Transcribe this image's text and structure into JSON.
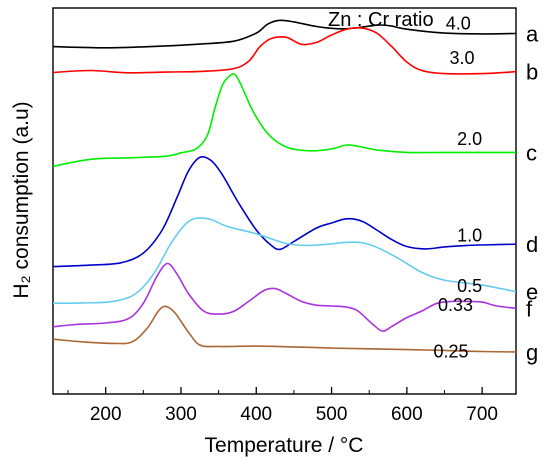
{
  "chart_data": {
    "type": "line",
    "title": "",
    "xlabel": "Temperature / °C",
    "ylabel": "H₂ consumption (a.u)",
    "xlim": [
      130,
      745
    ],
    "ylim": [
      0,
      100
    ],
    "x_ticks": [
      200,
      300,
      400,
      500,
      600,
      700
    ],
    "y_ticks_shown": false,
    "grid": false,
    "legend": {
      "title": "Zn : Cr ratio",
      "placement": "top-right"
    },
    "series": [
      {
        "letter": "a",
        "ratio": "4.0",
        "color": "#000000",
        "points": [
          [
            130,
            90.0
          ],
          [
            200,
            89.7
          ],
          [
            260,
            90.0
          ],
          [
            320,
            90.6
          ],
          [
            370,
            91.4
          ],
          [
            400,
            93.5
          ],
          [
            415,
            95.8
          ],
          [
            430,
            96.8
          ],
          [
            450,
            96.4
          ],
          [
            480,
            95.2
          ],
          [
            510,
            94.6
          ],
          [
            530,
            94.8
          ],
          [
            550,
            95.3
          ],
          [
            565,
            95.6
          ],
          [
            580,
            95.3
          ],
          [
            600,
            94.5
          ],
          [
            650,
            93.5
          ],
          [
            700,
            93.3
          ],
          [
            745,
            93.4
          ]
        ]
      },
      {
        "letter": "b",
        "ratio": "3.0",
        "color": "#ff0000",
        "points": [
          [
            130,
            83.3
          ],
          [
            180,
            83.8
          ],
          [
            230,
            83.2
          ],
          [
            280,
            83.4
          ],
          [
            330,
            83.6
          ],
          [
            370,
            84.3
          ],
          [
            390,
            86.2
          ],
          [
            405,
            90.0
          ],
          [
            420,
            92.1
          ],
          [
            440,
            92.4
          ],
          [
            460,
            90.6
          ],
          [
            480,
            91.1
          ],
          [
            500,
            93.0
          ],
          [
            520,
            94.5
          ],
          [
            540,
            94.8
          ],
          [
            560,
            93.5
          ],
          [
            580,
            90.0
          ],
          [
            600,
            86.0
          ],
          [
            620,
            83.8
          ],
          [
            650,
            83.0
          ],
          [
            700,
            83.0
          ],
          [
            745,
            83.5
          ]
        ]
      },
      {
        "letter": "c",
        "ratio": "2.0",
        "color": "#00ee00",
        "points": [
          [
            130,
            59.0
          ],
          [
            180,
            60.8
          ],
          [
            230,
            61.2
          ],
          [
            280,
            61.6
          ],
          [
            300,
            62.5
          ],
          [
            320,
            63.5
          ],
          [
            335,
            67.0
          ],
          [
            345,
            74.0
          ],
          [
            355,
            80.0
          ],
          [
            365,
            82.5
          ],
          [
            372,
            82.7
          ],
          [
            380,
            80.0
          ],
          [
            395,
            73.5
          ],
          [
            415,
            67.5
          ],
          [
            440,
            64.0
          ],
          [
            470,
            63.0
          ],
          [
            500,
            63.5
          ],
          [
            520,
            64.5
          ],
          [
            540,
            64.0
          ],
          [
            560,
            63.2
          ],
          [
            600,
            62.6
          ],
          [
            650,
            62.6
          ],
          [
            700,
            62.6
          ],
          [
            745,
            62.6
          ]
        ]
      },
      {
        "letter": "d",
        "ratio": "1.0",
        "color": "#0000cc",
        "points": [
          [
            130,
            33.0
          ],
          [
            180,
            33.4
          ],
          [
            220,
            34.0
          ],
          [
            250,
            36.5
          ],
          [
            275,
            42.5
          ],
          [
            295,
            51.0
          ],
          [
            310,
            57.8
          ],
          [
            325,
            61.3
          ],
          [
            340,
            60.5
          ],
          [
            355,
            56.8
          ],
          [
            375,
            50.0
          ],
          [
            400,
            42.5
          ],
          [
            420,
            38.5
          ],
          [
            432,
            37.5
          ],
          [
            450,
            39.5
          ],
          [
            480,
            43.0
          ],
          [
            500,
            44.3
          ],
          [
            520,
            45.4
          ],
          [
            540,
            44.8
          ],
          [
            560,
            42.5
          ],
          [
            580,
            40.0
          ],
          [
            600,
            38.2
          ],
          [
            625,
            37.6
          ],
          [
            650,
            38.1
          ],
          [
            680,
            38.5
          ],
          [
            720,
            38.7
          ],
          [
            745,
            38.8
          ]
        ]
      },
      {
        "letter": "e",
        "ratio": "0.5",
        "color": "#66ccee",
        "points": [
          [
            130,
            23.5
          ],
          [
            170,
            23.6
          ],
          [
            210,
            24.0
          ],
          [
            240,
            26.0
          ],
          [
            265,
            31.5
          ],
          [
            285,
            38.5
          ],
          [
            305,
            43.8
          ],
          [
            320,
            45.5
          ],
          [
            340,
            45.2
          ],
          [
            360,
            43.5
          ],
          [
            400,
            41.5
          ],
          [
            440,
            39.0
          ],
          [
            470,
            38.5
          ],
          [
            500,
            38.9
          ],
          [
            520,
            39.3
          ],
          [
            540,
            39.2
          ],
          [
            560,
            38.0
          ],
          [
            590,
            35.0
          ],
          [
            620,
            31.5
          ],
          [
            650,
            29.5
          ],
          [
            700,
            28.2
          ],
          [
            745,
            26.5
          ]
        ]
      },
      {
        "letter": "f",
        "ratio": "0.33",
        "color": "#aa33dd",
        "points": [
          [
            130,
            17.4
          ],
          [
            160,
            18.0
          ],
          [
            200,
            18.4
          ],
          [
            230,
            19.5
          ],
          [
            250,
            23.5
          ],
          [
            268,
            30.5
          ],
          [
            282,
            33.8
          ],
          [
            295,
            31.0
          ],
          [
            310,
            26.0
          ],
          [
            330,
            21.5
          ],
          [
            350,
            20.7
          ],
          [
            370,
            21.4
          ],
          [
            390,
            24.0
          ],
          [
            410,
            26.8
          ],
          [
            425,
            27.3
          ],
          [
            440,
            26.0
          ],
          [
            460,
            24.0
          ],
          [
            480,
            23.0
          ],
          [
            500,
            22.8
          ],
          [
            520,
            22.5
          ],
          [
            535,
            21.5
          ],
          [
            555,
            18.0
          ],
          [
            568,
            16.3
          ],
          [
            580,
            17.5
          ],
          [
            600,
            19.8
          ],
          [
            620,
            21.5
          ],
          [
            640,
            23.5
          ],
          [
            660,
            24.0
          ],
          [
            680,
            24.0
          ],
          [
            700,
            23.8
          ],
          [
            720,
            22.8
          ],
          [
            745,
            22.2
          ]
        ]
      },
      {
        "letter": "g",
        "ratio": "0.25",
        "color": "#aa6633",
        "points": [
          [
            130,
            14.2
          ],
          [
            170,
            13.5
          ],
          [
            210,
            13.1
          ],
          [
            235,
            13.5
          ],
          [
            255,
            17.0
          ],
          [
            270,
            21.5
          ],
          [
            280,
            22.7
          ],
          [
            292,
            21.0
          ],
          [
            310,
            16.0
          ],
          [
            325,
            12.7
          ],
          [
            350,
            12.3
          ],
          [
            400,
            12.4
          ],
          [
            450,
            12.2
          ],
          [
            500,
            11.9
          ],
          [
            550,
            11.7
          ],
          [
            600,
            11.5
          ],
          [
            650,
            11.3
          ],
          [
            700,
            11.0
          ],
          [
            745,
            10.9
          ]
        ]
      }
    ]
  }
}
